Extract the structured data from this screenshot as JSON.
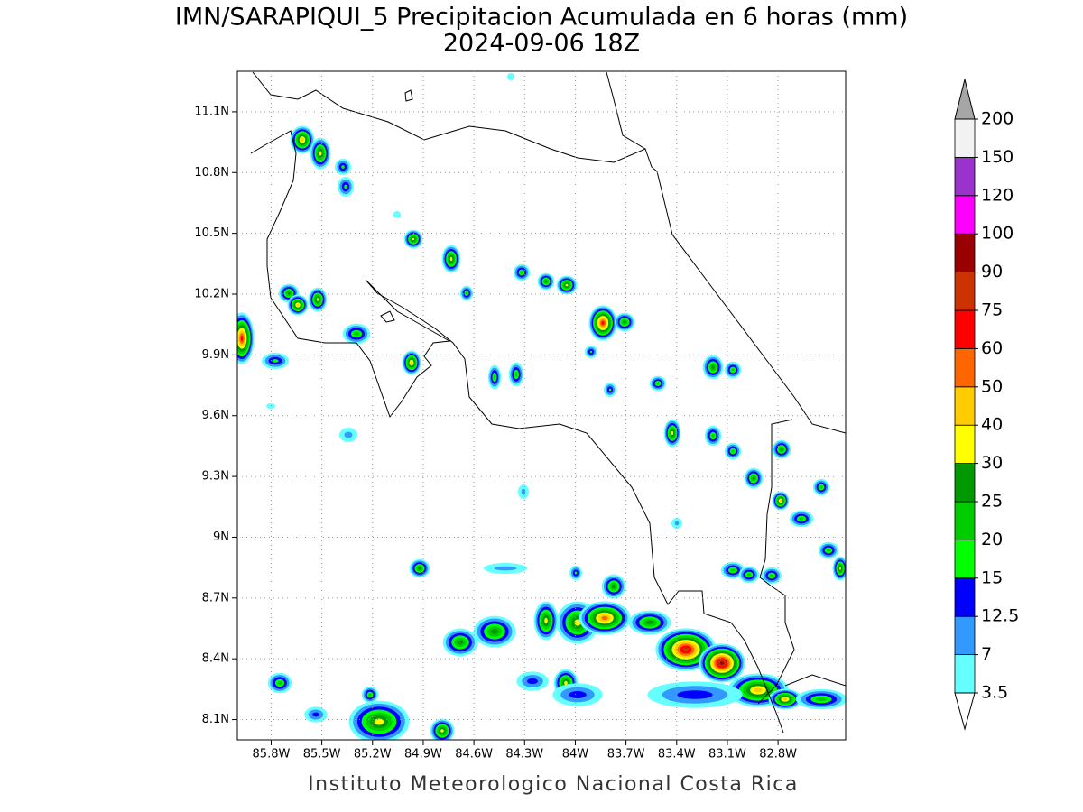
{
  "map": {
    "title": "IMN/SARAPIQUI_5 Precipitacion Acumulada en 6 horas (mm)",
    "subtitle": "2024-09-06 18Z",
    "credit": "Instituto Meteorologico Nacional Costa Rica",
    "lonlim": [
      -86.0,
      -82.4
    ],
    "latlim": [
      8.0,
      11.3
    ],
    "lon_ticks": [
      {
        "value": -85.8,
        "label": "85.8W"
      },
      {
        "value": -85.5,
        "label": "85.5W"
      },
      {
        "value": -85.2,
        "label": "85.2W"
      },
      {
        "value": -84.9,
        "label": "84.9W"
      },
      {
        "value": -84.6,
        "label": "84.6W"
      },
      {
        "value": -84.3,
        "label": "84.3W"
      },
      {
        "value": -84.0,
        "label": "84W"
      },
      {
        "value": -83.7,
        "label": "83.7W"
      },
      {
        "value": -83.4,
        "label": "83.4W"
      },
      {
        "value": -83.1,
        "label": "83.1W"
      },
      {
        "value": -82.8,
        "label": "82.8W"
      }
    ],
    "lat_ticks": [
      {
        "value": 11.1,
        "label": "11.1N"
      },
      {
        "value": 10.8,
        "label": "10.8N"
      },
      {
        "value": 10.5,
        "label": "10.5N"
      },
      {
        "value": 10.2,
        "label": "10.2N"
      },
      {
        "value": 9.9,
        "label": "9.9N"
      },
      {
        "value": 9.6,
        "label": "9.6N"
      },
      {
        "value": 9.3,
        "label": "9.3N"
      },
      {
        "value": 9.0,
        "label": "9N"
      },
      {
        "value": 8.7,
        "label": "8.7N"
      },
      {
        "value": 8.4,
        "label": "8.4N"
      },
      {
        "value": 8.1,
        "label": "8.1N"
      }
    ],
    "grid": true,
    "colorbar": {
      "levels": [
        3.5,
        7,
        12.5,
        15,
        20,
        25,
        30,
        40,
        50,
        60,
        75,
        90,
        100,
        120,
        150,
        200
      ],
      "colors": [
        "#66ffff",
        "#3399ff",
        "#0000ff",
        "#00ff00",
        "#00cc00",
        "#009900",
        "#ffff00",
        "#ffcc00",
        "#ff6600",
        "#ff0000",
        "#cc3300",
        "#990000",
        "#ff00ff",
        "#9933cc",
        "#f2f2f2"
      ],
      "under_color": "#ffffff",
      "over_color": "#a6a6a6"
    }
  }
}
